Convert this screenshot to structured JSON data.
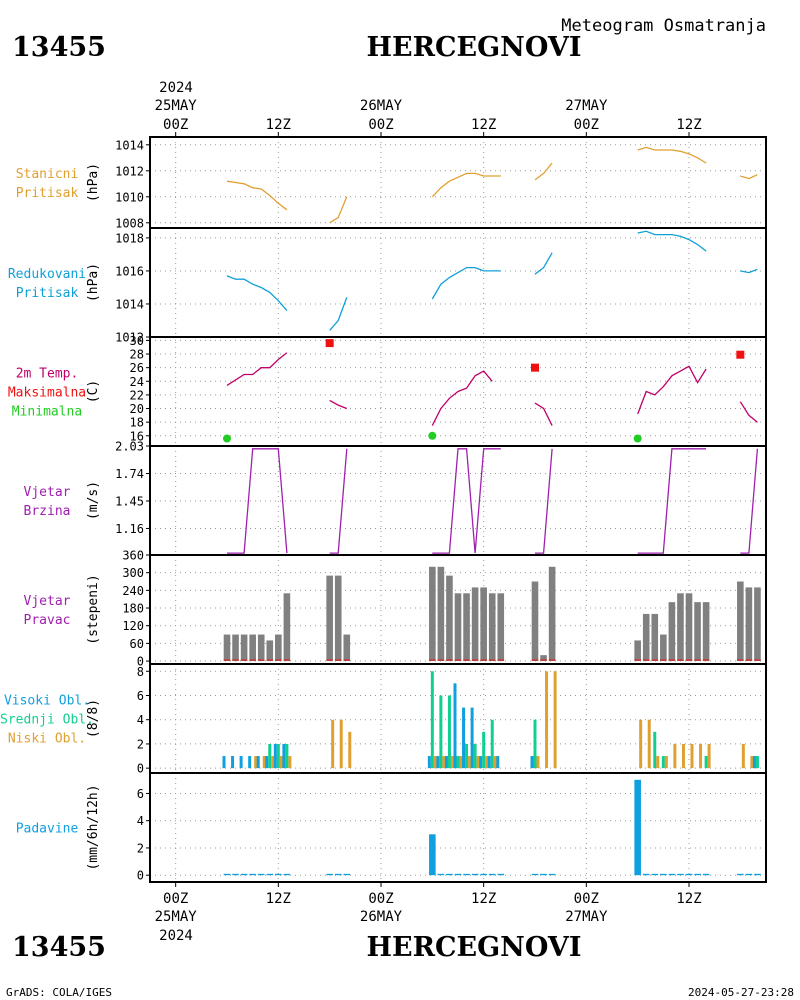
{
  "header": {
    "station_id": "13455",
    "station_name": "HERCEGNOVI",
    "product": "Meteogram Osmatranja"
  },
  "footer": {
    "station_id": "13455",
    "station_name": "HERCEGNOVI",
    "software": "GrADS: COLA/IGES",
    "timestamp": "2024-05-27-23:28"
  },
  "time_axis": {
    "year": "2024",
    "day_labels": [
      "25MAY",
      "26MAY",
      "27MAY"
    ],
    "hour_labels": [
      "00Z",
      "12Z",
      "00Z",
      "12Z",
      "00Z",
      "12Z"
    ],
    "range_hours": [
      -3,
      69
    ]
  },
  "colors": {
    "orange": "#e0a030",
    "cyan": "#10a0d8",
    "magenta": "#c0006a",
    "red": "#ee1111",
    "green": "#22cc22",
    "purple": "#a020b0",
    "gray": "#808080",
    "teal": "#10d090",
    "blue": "#10a0e0"
  },
  "chart_data": [
    {
      "type": "line",
      "panel_labels": [
        "Stanicni",
        "Pritisak"
      ],
      "ylabel": "(hPa)",
      "ylim": [
        1007.6,
        1014.6
      ],
      "yticks": [
        "1008",
        "1010",
        "1012",
        "1014"
      ],
      "series": [
        {
          "segments": [
            [
              [
                6,
                1011.2
              ],
              [
                7,
                1011.1
              ],
              [
                8,
                1011.0
              ],
              [
                9,
                1010.7
              ],
              [
                10,
                1010.6
              ],
              [
                11,
                1010.1
              ],
              [
                12,
                1009.5
              ],
              [
                13,
                1009.0
              ]
            ],
            [
              [
                18,
                1008.0
              ],
              [
                19,
                1008.4
              ],
              [
                20,
                1010.0
              ]
            ],
            [
              [
                30,
                1010.0
              ],
              [
                31,
                1010.7
              ],
              [
                32,
                1011.2
              ],
              [
                33,
                1011.5
              ],
              [
                34,
                1011.8
              ],
              [
                35,
                1011.8
              ],
              [
                36,
                1011.6
              ],
              [
                37,
                1011.6
              ],
              [
                38,
                1011.6
              ]
            ],
            [
              [
                42,
                1011.3
              ],
              [
                43,
                1011.8
              ],
              [
                44,
                1012.6
              ]
            ],
            [
              [
                54,
                1013.6
              ],
              [
                55,
                1013.8
              ],
              [
                56,
                1013.6
              ],
              [
                57,
                1013.6
              ],
              [
                58,
                1013.6
              ],
              [
                59,
                1013.5
              ],
              [
                60,
                1013.3
              ],
              [
                61,
                1013.0
              ],
              [
                62,
                1012.6
              ]
            ],
            [
              [
                66,
                1011.6
              ],
              [
                67,
                1011.4
              ],
              [
                68,
                1011.7
              ]
            ]
          ]
        }
      ]
    },
    {
      "type": "line",
      "panel_labels": [
        "Redukovani",
        "Pritisak"
      ],
      "ylabel": "(hPa)",
      "ylim": [
        1012.0,
        1018.6
      ],
      "yticks": [
        "1012",
        "1014",
        "1016",
        "1018"
      ],
      "series": [
        {
          "segments": [
            [
              [
                6,
                1015.7
              ],
              [
                7,
                1015.5
              ],
              [
                8,
                1015.5
              ],
              [
                9,
                1015.2
              ],
              [
                10,
                1015.0
              ],
              [
                11,
                1014.7
              ],
              [
                12,
                1014.2
              ],
              [
                13,
                1013.6
              ]
            ],
            [
              [
                18,
                1012.4
              ],
              [
                19,
                1013.0
              ],
              [
                20,
                1014.4
              ]
            ],
            [
              [
                30,
                1014.3
              ],
              [
                31,
                1015.2
              ],
              [
                32,
                1015.6
              ],
              [
                33,
                1015.9
              ],
              [
                34,
                1016.2
              ],
              [
                35,
                1016.2
              ],
              [
                36,
                1016.0
              ],
              [
                37,
                1016.0
              ],
              [
                38,
                1016.0
              ]
            ],
            [
              [
                42,
                1015.8
              ],
              [
                43,
                1016.2
              ],
              [
                44,
                1017.1
              ]
            ],
            [
              [
                54,
                1018.3
              ],
              [
                55,
                1018.4
              ],
              [
                56,
                1018.2
              ],
              [
                57,
                1018.2
              ],
              [
                58,
                1018.2
              ],
              [
                59,
                1018.1
              ],
              [
                60,
                1017.9
              ],
              [
                61,
                1017.6
              ],
              [
                62,
                1017.2
              ]
            ],
            [
              [
                66,
                1016.0
              ],
              [
                67,
                1015.9
              ],
              [
                68,
                1016.1
              ]
            ]
          ]
        }
      ]
    },
    {
      "type": "line",
      "panel_labels": [
        "2m Temp.",
        "Maksimalna",
        "Minimalna"
      ],
      "ylabel": "(C)",
      "ylim": [
        14.5,
        30.5
      ],
      "yticks": [
        "16",
        "18",
        "20",
        "22",
        "24",
        "26",
        "28",
        "30"
      ],
      "series": [
        {
          "segments": [
            [
              [
                6,
                23.4
              ],
              [
                7,
                24.2
              ],
              [
                8,
                25.0
              ],
              [
                9,
                25.0
              ],
              [
                10,
                26.0
              ],
              [
                11,
                26.0
              ],
              [
                12,
                27.2
              ],
              [
                13,
                28.2
              ]
            ],
            [
              [
                18,
                21.2
              ],
              [
                19,
                20.5
              ],
              [
                20,
                20.0
              ]
            ],
            [
              [
                30,
                17.5
              ],
              [
                31,
                20.0
              ],
              [
                32,
                21.5
              ],
              [
                33,
                22.5
              ],
              [
                34,
                23.0
              ],
              [
                35,
                24.8
              ],
              [
                36,
                25.5
              ],
              [
                37,
                24.0
              ]
            ],
            [
              [
                42,
                20.8
              ],
              [
                43,
                20.0
              ],
              [
                44,
                17.5
              ]
            ],
            [
              [
                54,
                19.2
              ],
              [
                55,
                22.5
              ],
              [
                56,
                22.0
              ],
              [
                57,
                23.2
              ],
              [
                58,
                24.8
              ],
              [
                59,
                25.5
              ],
              [
                60,
                26.2
              ],
              [
                61,
                23.8
              ],
              [
                62,
                25.8
              ]
            ],
            [
              [
                66,
                21.0
              ],
              [
                67,
                19.0
              ],
              [
                68,
                18.0
              ]
            ]
          ]
        }
      ],
      "maximum": [
        [
          18,
          29.6
        ],
        [
          42,
          26.0
        ],
        [
          66,
          27.9
        ]
      ],
      "minimum": [
        [
          6,
          15.6
        ],
        [
          30,
          16.0
        ],
        [
          54,
          15.6
        ]
      ]
    },
    {
      "type": "line",
      "panel_labels": [
        "Vjetar",
        "Brzina"
      ],
      "ylabel": "(m/s)",
      "ylim": [
        0.88,
        2.03
      ],
      "yticks": [
        "1.16",
        "1.45",
        "1.74",
        "2.03"
      ],
      "series": [
        {
          "segments": [
            [
              [
                6,
                0.9
              ],
              [
                7,
                0.9
              ],
              [
                8,
                0.9
              ],
              [
                9,
                2.0
              ],
              [
                10,
                2.0
              ],
              [
                11,
                2.0
              ],
              [
                12,
                2.0
              ],
              [
                13,
                0.9
              ]
            ],
            [
              [
                18,
                0.9
              ],
              [
                19,
                0.9
              ],
              [
                20,
                2.0
              ]
            ],
            [
              [
                30,
                0.9
              ],
              [
                31,
                0.9
              ],
              [
                32,
                0.9
              ],
              [
                33,
                2.0
              ],
              [
                34,
                2.0
              ],
              [
                35,
                0.9
              ],
              [
                36,
                2.0
              ],
              [
                37,
                2.0
              ],
              [
                38,
                2.0
              ]
            ],
            [
              [
                42,
                0.9
              ],
              [
                43,
                0.9
              ],
              [
                44,
                2.0
              ]
            ],
            [
              [
                54,
                0.9
              ],
              [
                55,
                0.9
              ],
              [
                56,
                0.9
              ],
              [
                57,
                0.9
              ],
              [
                58,
                2.0
              ],
              [
                59,
                2.0
              ],
              [
                60,
                2.0
              ],
              [
                61,
                2.0
              ],
              [
                62,
                2.0
              ]
            ],
            [
              [
                66,
                0.9
              ],
              [
                67,
                0.9
              ],
              [
                68,
                2.0
              ]
            ]
          ]
        }
      ]
    },
    {
      "type": "bar",
      "panel_labels": [
        "Vjetar",
        "Pravac"
      ],
      "ylabel": "(stepeni)",
      "ylim": [
        -10,
        360
      ],
      "yticks": [
        "0",
        "60",
        "120",
        "180",
        "240",
        "300",
        "360"
      ],
      "x": [
        6,
        7,
        8,
        9,
        10,
        11,
        12,
        13,
        18,
        19,
        20,
        30,
        31,
        32,
        33,
        34,
        35,
        36,
        37,
        38,
        42,
        43,
        44,
        54,
        55,
        56,
        57,
        58,
        59,
        60,
        61,
        62,
        66,
        67,
        68
      ],
      "values": [
        90,
        90,
        90,
        90,
        90,
        70,
        90,
        230,
        290,
        290,
        90,
        320,
        320,
        290,
        230,
        230,
        250,
        250,
        230,
        230,
        270,
        20,
        320,
        70,
        160,
        160,
        90,
        200,
        230,
        230,
        200,
        200,
        270,
        250,
        250
      ]
    },
    {
      "type": "bar",
      "panel_labels": [
        "Visoki Obl.",
        "Srednji Obl.",
        "Niski Obl."
      ],
      "ylabel": "(8/8)",
      "ylim": [
        -0.4,
        8.6
      ],
      "yticks": [
        "0",
        "2",
        "4",
        "6",
        "8"
      ],
      "x": [
        6,
        7,
        8,
        9,
        10,
        11,
        12,
        13,
        18,
        19,
        20,
        30,
        31,
        32,
        33,
        34,
        35,
        36,
        37,
        38,
        42,
        43,
        44,
        54,
        55,
        56,
        57,
        58,
        59,
        60,
        61,
        62,
        66,
        67,
        68
      ],
      "series": [
        {
          "name": "Visoki Obl.",
          "values": [
            1,
            1,
            1,
            1,
            1,
            1,
            2,
            2,
            0,
            0,
            0,
            1,
            1,
            1,
            7,
            5,
            5,
            1,
            1,
            1,
            1,
            0,
            0,
            0,
            0,
            0,
            0,
            0,
            0,
            0,
            0,
            0,
            0,
            0,
            1
          ]
        },
        {
          "name": "Srednji Obl.",
          "values": [
            0,
            0,
            0,
            0,
            0,
            2,
            2,
            2,
            0,
            0,
            0,
            8,
            6,
            6,
            1,
            2,
            2,
            3,
            4,
            0,
            4,
            0,
            0,
            0,
            0,
            3,
            1,
            0,
            0,
            0,
            0,
            1,
            0,
            0,
            1
          ]
        },
        {
          "name": "Niski Obl.",
          "values": [
            0,
            0,
            0,
            1,
            1,
            1,
            1,
            1,
            4,
            4,
            3,
            1,
            1,
            1,
            1,
            1,
            1,
            1,
            1,
            0,
            1,
            8,
            8,
            4,
            4,
            1,
            1,
            2,
            2,
            2,
            2,
            2,
            2,
            1,
            0
          ]
        }
      ]
    },
    {
      "type": "bar",
      "panel_labels": [
        "Padavine"
      ],
      "ylabel": "(mm/6h/12h)",
      "ylim": [
        -0.5,
        7.5
      ],
      "yticks": [
        "0",
        "2",
        "4",
        "6"
      ],
      "x": [
        6,
        7,
        8,
        9,
        10,
        11,
        12,
        13,
        18,
        19,
        20,
        30,
        31,
        32,
        33,
        34,
        35,
        36,
        37,
        38,
        42,
        43,
        44,
        54,
        55,
        56,
        57,
        58,
        59,
        60,
        61,
        62,
        66,
        67,
        68
      ],
      "values": [
        0.1,
        0.1,
        0.1,
        0.1,
        0.1,
        0.1,
        0.1,
        0.1,
        0.1,
        0.1,
        0.1,
        3.0,
        0.1,
        0.1,
        0.1,
        0.1,
        0.1,
        0.1,
        0.1,
        0.1,
        0.1,
        0.1,
        0.1,
        7.0,
        0.1,
        0.1,
        0.1,
        0.1,
        0.1,
        0.1,
        0.1,
        0.1,
        0.1,
        0.1,
        0.1
      ]
    }
  ]
}
